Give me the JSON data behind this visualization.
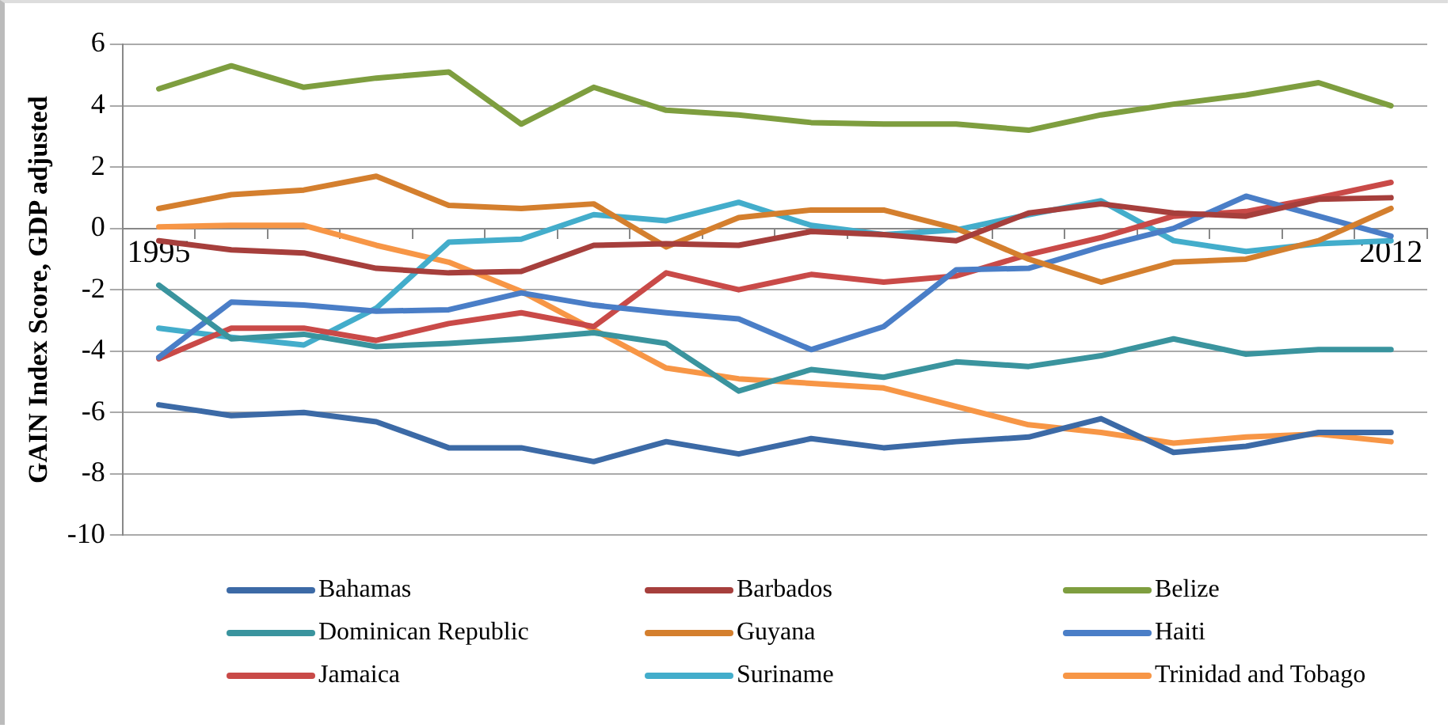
{
  "chart_data": {
    "type": "line",
    "ylabel": "GAIN Index Score, GDP adjusted",
    "categories": [
      "1995",
      null,
      null,
      null,
      null,
      null,
      null,
      null,
      null,
      null,
      null,
      null,
      null,
      null,
      null,
      null,
      null,
      "2012"
    ],
    "ylim": [
      -10,
      6
    ],
    "yticks": [
      -10,
      -8,
      -6,
      -4,
      -2,
      0,
      2,
      4,
      6
    ],
    "grid": "y",
    "legend": "bottom",
    "marker": "none",
    "line_style": "solid",
    "series": [
      {
        "name": "Bahamas",
        "color": "#3c6aa6",
        "values": [
          -5.75,
          -6.1,
          -6.0,
          -6.3,
          -7.15,
          -7.15,
          -7.6,
          -6.95,
          -7.35,
          -6.85,
          -7.15,
          -6.95,
          -6.8,
          -6.2,
          -7.3,
          -7.1,
          -6.65,
          -6.65
        ]
      },
      {
        "name": "Barbados",
        "color": "#a63f3c",
        "values": [
          -0.4,
          -0.7,
          -0.8,
          -1.3,
          -1.45,
          -1.4,
          -0.55,
          -0.5,
          -0.55,
          -0.1,
          -0.2,
          -0.4,
          0.5,
          0.8,
          0.5,
          0.4,
          0.95,
          1.0
        ]
      },
      {
        "name": "Belize",
        "color": "#7e9e3f",
        "values": [
          4.55,
          5.3,
          4.6,
          4.9,
          5.1,
          3.4,
          4.6,
          3.85,
          3.7,
          3.45,
          3.4,
          3.4,
          3.2,
          3.7,
          4.05,
          4.35,
          4.75,
          4.0
        ]
      },
      {
        "name": "Dominican Republic",
        "color": "#3a949e",
        "values": [
          -1.85,
          -3.6,
          -3.45,
          -3.85,
          -3.75,
          -3.6,
          -3.4,
          -3.75,
          -5.3,
          -4.6,
          -4.85,
          -4.35,
          -4.5,
          -4.15,
          -3.6,
          -4.1,
          -3.95,
          -3.95
        ]
      },
      {
        "name": "Guyana",
        "color": "#d47f2e",
        "values": [
          0.65,
          1.1,
          1.25,
          1.7,
          0.75,
          0.65,
          0.8,
          -0.6,
          0.35,
          0.6,
          0.6,
          0.0,
          -1.0,
          -1.75,
          -1.1,
          -1.0,
          -0.4,
          0.65
        ]
      },
      {
        "name": "Haiti",
        "color": "#4a7ec7",
        "values": [
          -4.2,
          -2.4,
          -2.5,
          -2.7,
          -2.65,
          -2.1,
          -2.5,
          -2.75,
          -2.95,
          -3.95,
          -3.2,
          -1.35,
          -1.3,
          -0.6,
          0.0,
          1.05,
          0.4,
          -0.25
        ]
      },
      {
        "name": "Jamaica",
        "color": "#c94a48",
        "values": [
          -4.25,
          -3.25,
          -3.25,
          -3.65,
          -3.1,
          -2.75,
          -3.2,
          -1.45,
          -2.0,
          -1.5,
          -1.75,
          -1.55,
          -0.85,
          -0.3,
          0.4,
          0.55,
          1.0,
          1.5
        ]
      },
      {
        "name": "Suriname",
        "color": "#43adcb",
        "values": [
          -3.25,
          -3.55,
          -3.8,
          -2.6,
          -0.45,
          -0.35,
          0.45,
          0.25,
          0.85,
          0.1,
          -0.2,
          -0.05,
          0.45,
          0.9,
          -0.4,
          -0.75,
          -0.5,
          -0.4
        ]
      },
      {
        "name": "Trinidad and Tobago",
        "color": "#f79646",
        "values": [
          0.05,
          0.1,
          0.1,
          -0.55,
          -1.1,
          -2.05,
          -3.3,
          -4.55,
          -4.9,
          -5.05,
          -5.2,
          -5.8,
          -6.4,
          -6.65,
          -7.0,
          -6.8,
          -6.7,
          -6.95
        ]
      }
    ]
  }
}
